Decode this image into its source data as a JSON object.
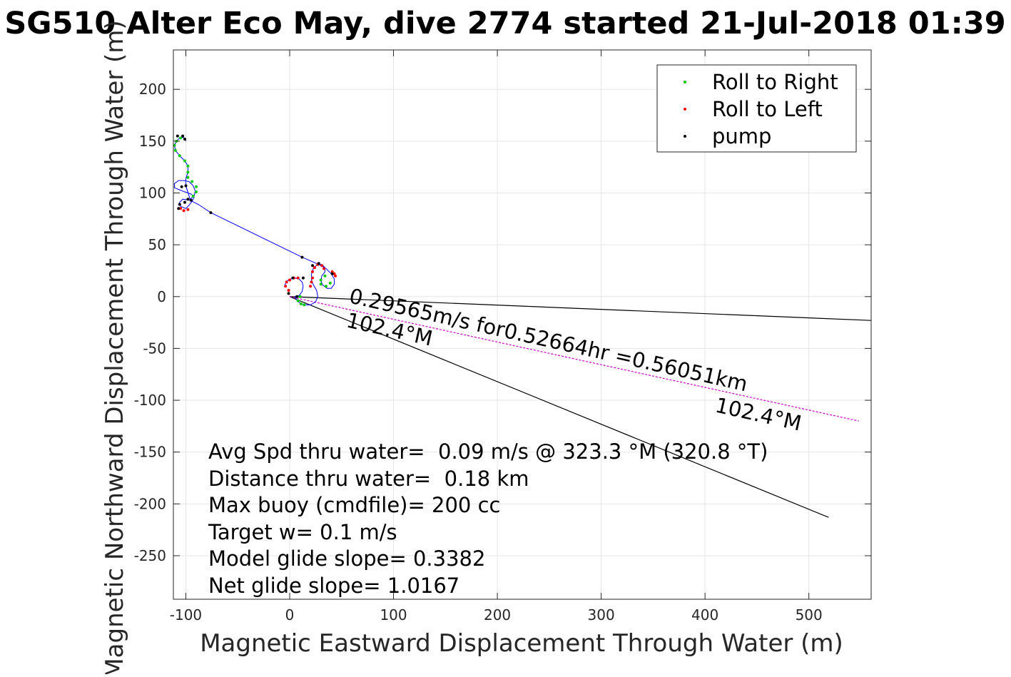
{
  "chart_data": {
    "type": "scatter",
    "title": "SG510 Alter Eco May, dive 2774 started 21-Jul-2018 01:39",
    "xlabel": "Magnetic Eastward Displacement Through Water (m)",
    "ylabel": "Magnetic Northward Displacement Through Water (m)",
    "xlim": [
      -112,
      560
    ],
    "ylim": [
      -292,
      238
    ],
    "xticks": [
      -100,
      0,
      100,
      200,
      300,
      400,
      500
    ],
    "yticks": [
      -250,
      -200,
      -150,
      -100,
      -50,
      0,
      50,
      100,
      150,
      200
    ],
    "xtick_labels": [
      "-100",
      "0",
      "100",
      "200",
      "300",
      "400",
      "500"
    ],
    "ytick_labels": [
      "-250",
      "-200",
      "-150",
      "-100",
      "-50",
      "0",
      "50",
      "100",
      "150",
      "200"
    ],
    "grid": true,
    "legend_position": "top-right",
    "series": [
      {
        "name": "Roll to Right",
        "color": "#00cc00",
        "marker": "dot",
        "points": [
          [
            -105,
            153
          ],
          [
            -109,
            150
          ],
          [
            -111,
            146
          ],
          [
            -110,
            141
          ],
          [
            -106,
            136
          ],
          [
            -101,
            131
          ],
          [
            -98,
            126
          ],
          [
            -98,
            120
          ],
          [
            -98,
            115
          ],
          [
            -94,
            111
          ],
          [
            -90,
            106
          ],
          [
            -90,
            101
          ],
          [
            -93,
            97
          ],
          [
            34,
            20
          ],
          [
            30,
            16
          ],
          [
            30,
            12
          ],
          [
            35,
            10
          ],
          [
            39,
            13
          ],
          [
            10,
            0
          ],
          [
            8,
            -4
          ],
          [
            11,
            -7
          ],
          [
            14,
            -8
          ]
        ]
      },
      {
        "name": "Roll to Left",
        "color": "#ff0000",
        "marker": "dot",
        "points": [
          [
            -105,
            85
          ],
          [
            -102,
            83
          ],
          [
            -98,
            84
          ],
          [
            -1,
            6
          ],
          [
            -4,
            10
          ],
          [
            -3,
            14
          ],
          [
            0,
            16
          ],
          [
            4,
            18
          ],
          [
            8,
            18
          ],
          [
            22,
            18
          ],
          [
            21,
            14
          ],
          [
            20,
            10
          ],
          [
            22,
            24
          ],
          [
            24,
            28
          ],
          [
            27,
            31
          ],
          [
            31,
            30
          ],
          [
            33,
            27
          ],
          [
            41,
            24
          ],
          [
            43,
            22
          ],
          [
            44,
            20
          ]
        ]
      },
      {
        "name": "pump",
        "color": "#000000",
        "marker": "dot",
        "points": [
          [
            -108,
            155
          ],
          [
            -103,
            155
          ],
          [
            -101,
            152
          ],
          [
            -100,
            107
          ],
          [
            -104,
            106
          ],
          [
            -106,
            89
          ],
          [
            -107,
            85
          ],
          [
            -98,
            94
          ],
          [
            -95,
            93
          ],
          [
            -101,
            91
          ],
          [
            -76,
            81
          ],
          [
            12,
            38
          ],
          [
            28,
            32
          ],
          [
            22,
            30
          ],
          [
            3,
            18
          ],
          [
            13,
            18
          ],
          [
            -1,
            3
          ],
          [
            7,
            0
          ],
          [
            41,
            22
          ]
        ]
      }
    ],
    "track": [
      [
        -5,
        10
      ],
      [
        -3,
        15
      ],
      [
        1,
        17
      ],
      [
        5,
        18
      ],
      [
        9,
        17
      ],
      [
        12,
        14
      ],
      [
        13,
        10
      ],
      [
        12,
        5
      ],
      [
        9,
        1
      ],
      [
        5,
        0
      ],
      [
        8,
        -5
      ],
      [
        14,
        -8
      ],
      [
        20,
        -8
      ],
      [
        25,
        -5
      ],
      [
        27,
        0
      ],
      [
        26,
        6
      ],
      [
        23,
        11
      ],
      [
        21,
        16
      ],
      [
        21,
        22
      ],
      [
        23,
        28
      ],
      [
        27,
        31
      ],
      [
        31,
        31
      ],
      [
        34,
        28
      ],
      [
        34,
        24
      ],
      [
        31,
        20
      ],
      [
        30,
        15
      ],
      [
        32,
        11
      ],
      [
        36,
        8
      ],
      [
        40,
        8
      ],
      [
        43,
        12
      ],
      [
        43,
        17
      ],
      [
        40,
        22
      ],
      [
        35,
        27
      ],
      [
        28,
        31
      ],
      [
        12,
        38
      ],
      [
        -76,
        81
      ],
      [
        -88,
        89
      ],
      [
        -96,
        93
      ],
      [
        -103,
        94
      ],
      [
        -106,
        91
      ],
      [
        -105,
        87
      ],
      [
        -100,
        85
      ],
      [
        -97,
        88
      ],
      [
        -94,
        92
      ],
      [
        -92,
        96
      ],
      [
        -95,
        99
      ],
      [
        -101,
        101
      ],
      [
        -106,
        103
      ],
      [
        -111,
        105
      ],
      [
        -111,
        109
      ],
      [
        -107,
        112
      ],
      [
        -102,
        112
      ],
      [
        -97,
        111
      ],
      [
        -93,
        107
      ],
      [
        -91,
        102
      ],
      [
        -92,
        97
      ],
      [
        -96,
        94
      ],
      [
        -100,
        107
      ],
      [
        -100,
        114
      ],
      [
        -98,
        120
      ],
      [
        -98,
        126
      ],
      [
        -101,
        131
      ],
      [
        -106,
        136
      ],
      [
        -110,
        141
      ],
      [
        -111,
        146
      ],
      [
        -109,
        150
      ],
      [
        -105,
        154
      ],
      [
        -101,
        153
      ],
      [
        -100,
        150
      ]
    ],
    "lines": [
      {
        "from": [
          0,
          0
        ],
        "to": [
          560,
          -23
        ],
        "color": "#000000"
      },
      {
        "from": [
          0,
          0
        ],
        "to": [
          519,
          -213
        ],
        "color": "#000000"
      },
      {
        "from": [
          0,
          0
        ],
        "to": [
          548,
          -120
        ],
        "color": "#cc00cc",
        "dashed": true
      }
    ],
    "annotations": {
      "speed_line": "0.29565m/s for0.52664hr =0.56051km",
      "heading_start": "102.4°M",
      "heading_end": "102.4°M"
    },
    "stats": [
      "Avg Spd thru water=  0.09 m/s @ 323.3 °M (320.8 °T)",
      "Distance thru water=  0.18 km",
      "Max buoy (cmdfile)= 200 cc",
      "Target w= 0.1 m/s",
      "Model glide slope= 0.3382",
      "Net glide slope= 1.0167"
    ]
  }
}
